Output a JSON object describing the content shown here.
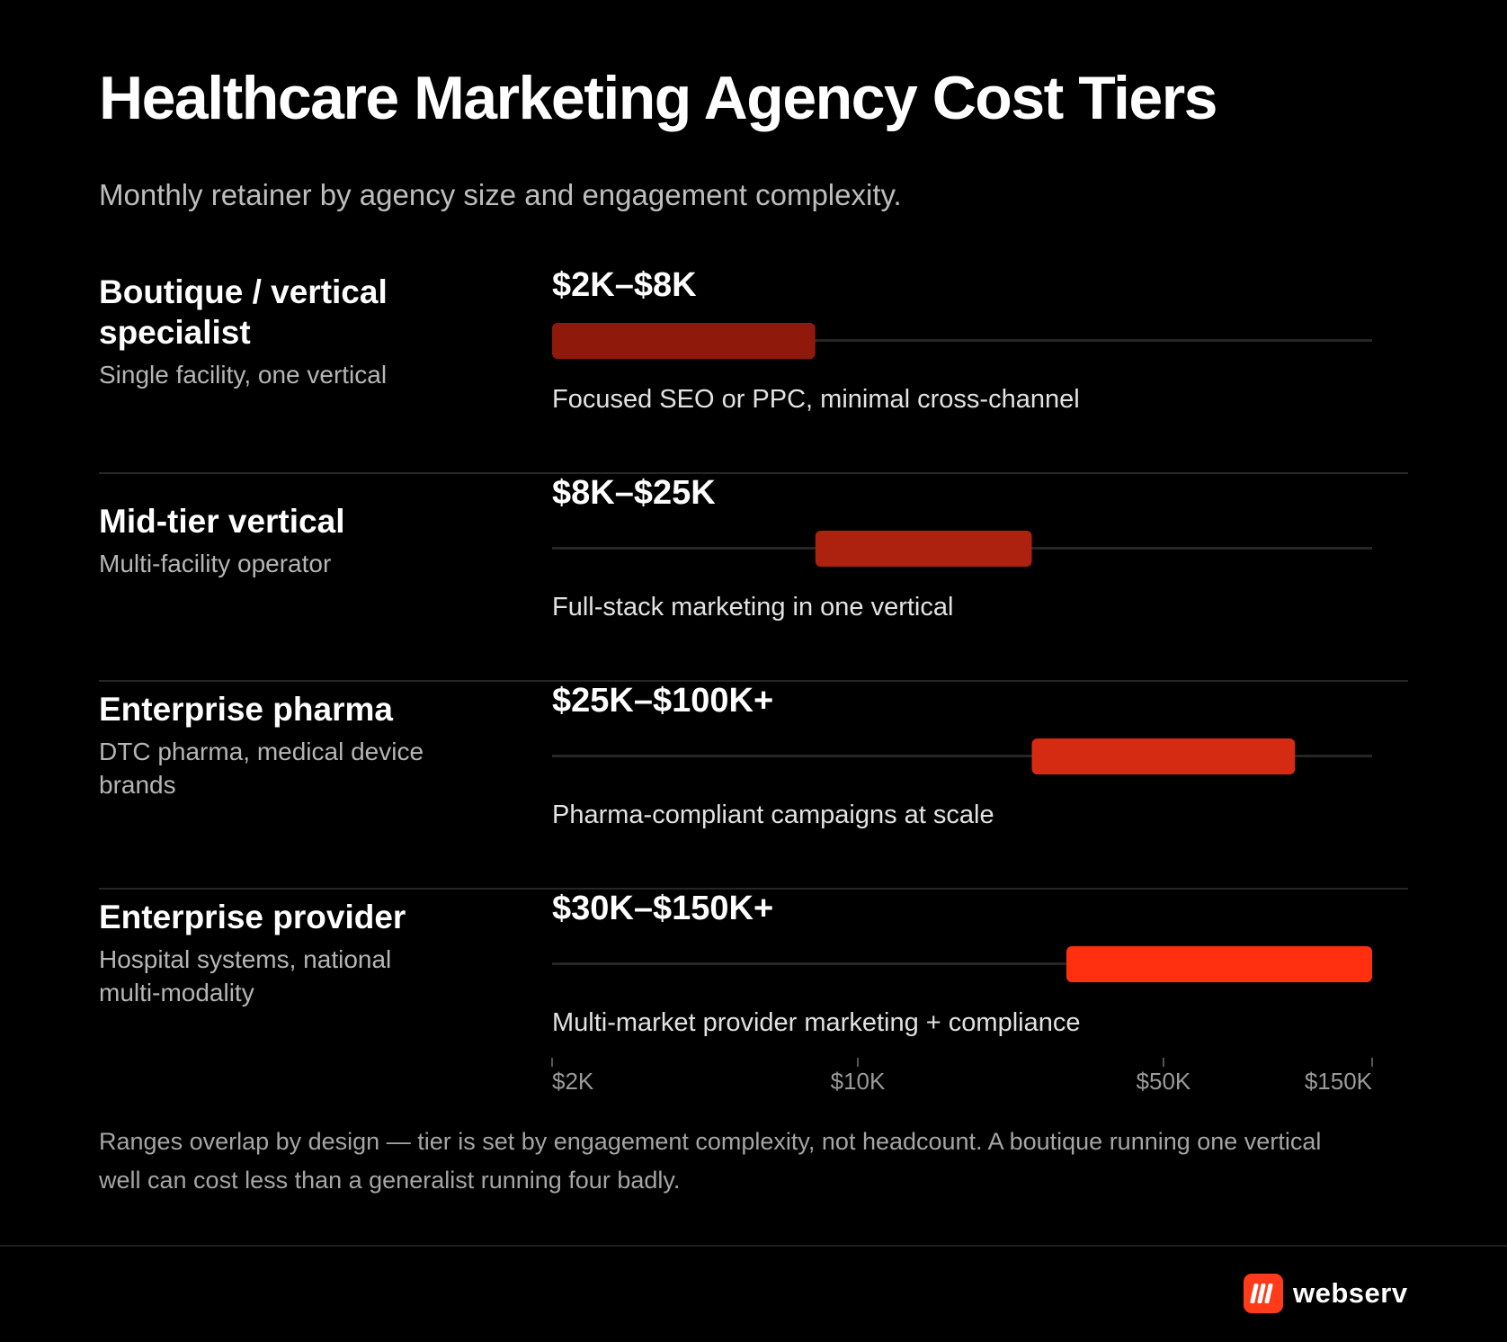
{
  "header": {
    "title": "Healthcare Marketing Agency Cost Tiers",
    "subtitle": "Monthly retainer by agency size and engagement complexity."
  },
  "chart_data": {
    "type": "range-bar",
    "title": "Healthcare Marketing Agency Cost Tiers",
    "subtitle": "Monthly retainer by agency size and engagement complexity.",
    "x_scale": "log",
    "xlim": [
      2000,
      150000
    ],
    "x_ticks": [
      {
        "value": 2000,
        "label": "$2K"
      },
      {
        "value": 10000,
        "label": "$10K"
      },
      {
        "value": 50000,
        "label": "$50K"
      },
      {
        "value": 150000,
        "label": "$150K"
      }
    ],
    "tiers": [
      {
        "name": "Boutique / vertical specialist",
        "description": "Single facility, one vertical",
        "range_label": "$2K–$8K",
        "min": 2000,
        "max": 8000,
        "note": "Focused SEO or PPC, minimal cross-channel",
        "color": "#8f1a0b"
      },
      {
        "name": "Mid-tier vertical",
        "description": "Multi-facility operator",
        "range_label": "$8K–$25K",
        "min": 8000,
        "max": 25000,
        "note": "Full-stack marketing in one vertical",
        "color": "#ad210f"
      },
      {
        "name": "Enterprise pharma",
        "description": "DTC pharma, medical device brands",
        "range_label": "$25K–$100K+",
        "min": 25000,
        "max": 100000,
        "note": "Pharma-compliant campaigns at scale",
        "color": "#d42b12"
      },
      {
        "name": "Enterprise provider",
        "description": "Hospital systems, national multi-modality",
        "range_label": "$30K–$150K+",
        "min": 30000,
        "max": 150000,
        "note": "Multi-market provider marketing + compliance",
        "color": "#ff3010"
      }
    ]
  },
  "footnote": "Ranges overlap by design — tier is set by engagement complexity, not headcount. A boutique running one vertical well can cost less than a generalist running four badly.",
  "brand": {
    "name": "webserv",
    "icon": "webserv-logo-icon",
    "color": "#ff3b1a"
  },
  "colors": {
    "background": "#000000",
    "track": "#262626"
  }
}
